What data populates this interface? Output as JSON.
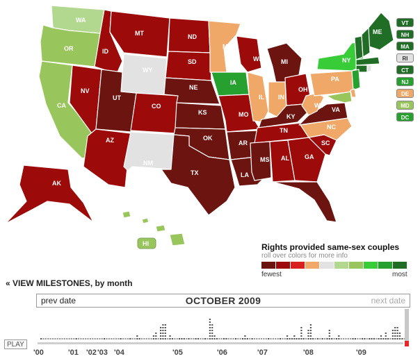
{
  "legend": {
    "title": "Rights provided same-sex couples",
    "subtitle": "roll over colors for more info",
    "fewest": "fewest",
    "most": "most",
    "scale_colors": [
      "#6b1410",
      "#9c0a0a",
      "#d92020",
      "#f0a868",
      "#e2e2e2",
      "#b2d890",
      "#99c65c",
      "#38cc38",
      "#26a02e",
      "#206d26"
    ]
  },
  "side_states": [
    {
      "abbr": "VT",
      "color": "#206d26"
    },
    {
      "abbr": "NH",
      "color": "#206d26"
    },
    {
      "abbr": "MA",
      "color": "#206d26"
    },
    {
      "abbr": "RI",
      "color": "#e2e2e2"
    },
    {
      "abbr": "CT",
      "color": "#206d26"
    },
    {
      "abbr": "NJ",
      "color": "#26a02e"
    },
    {
      "abbr": "DE",
      "color": "#f0a868"
    },
    {
      "abbr": "MD",
      "color": "#99c65c"
    },
    {
      "abbr": "DC",
      "color": "#26a02e"
    }
  ],
  "states": [
    {
      "abbr": "WA",
      "color": "#b2d890"
    },
    {
      "abbr": "OR",
      "color": "#99c65c"
    },
    {
      "abbr": "CA",
      "color": "#99c65c"
    },
    {
      "abbr": "NV",
      "color": "#9c0a0a"
    },
    {
      "abbr": "ID",
      "color": "#9c0a0a"
    },
    {
      "abbr": "MT",
      "color": "#9c0a0a"
    },
    {
      "abbr": "WY",
      "color": "#e2e2e2"
    },
    {
      "abbr": "UT",
      "color": "#6b1410"
    },
    {
      "abbr": "AZ",
      "color": "#9c0a0a"
    },
    {
      "abbr": "CO",
      "color": "#9c0a0a"
    },
    {
      "abbr": "NM",
      "color": "#e2e2e2"
    },
    {
      "abbr": "ND",
      "color": "#9c0a0a"
    },
    {
      "abbr": "SD",
      "color": "#9c0a0a"
    },
    {
      "abbr": "NE",
      "color": "#6b1410"
    },
    {
      "abbr": "KS",
      "color": "#6b1410"
    },
    {
      "abbr": "OK",
      "color": "#6b1410"
    },
    {
      "abbr": "TX",
      "color": "#6b1410"
    },
    {
      "abbr": "MN",
      "color": "#f0a868"
    },
    {
      "abbr": "IA",
      "color": "#26a02e"
    },
    {
      "abbr": "MO",
      "color": "#9c0a0a"
    },
    {
      "abbr": "AR",
      "color": "#6b1410"
    },
    {
      "abbr": "LA",
      "color": "#6b1410"
    },
    {
      "abbr": "WI",
      "color": "#9c0a0a"
    },
    {
      "abbr": "IL",
      "color": "#f0a868"
    },
    {
      "abbr": "MI",
      "color": "#6b1410"
    },
    {
      "abbr": "IN",
      "color": "#f0a868"
    },
    {
      "abbr": "OH",
      "color": "#9c0a0a"
    },
    {
      "abbr": "KY",
      "color": "#6b1410"
    },
    {
      "abbr": "TN",
      "color": "#9c0a0a"
    },
    {
      "abbr": "MS",
      "color": "#6b1410"
    },
    {
      "abbr": "AL",
      "color": "#9c0a0a"
    },
    {
      "abbr": "GA",
      "color": "#9c0a0a"
    },
    {
      "abbr": "FL",
      "color": "#6b1410"
    },
    {
      "abbr": "SC",
      "color": "#9c0a0a"
    },
    {
      "abbr": "NC",
      "color": "#f0a868"
    },
    {
      "abbr": "VA",
      "color": "#6b1410"
    },
    {
      "abbr": "WV",
      "color": "#f0a868"
    },
    {
      "abbr": "PA",
      "color": "#f0a868"
    },
    {
      "abbr": "NY",
      "color": "#38cc38"
    },
    {
      "abbr": "ME",
      "color": "#206d26"
    },
    {
      "abbr": "AK",
      "color": "#9c0a0a"
    },
    {
      "abbr": "HI",
      "color": "#99c65c"
    }
  ],
  "timeline": {
    "milestones_prefix": "« VIEW MILESTONES",
    "milestones_suffix": ", by month",
    "prev_label": "prev date",
    "current_month": "OCTOBER 2009",
    "next_label": "next date",
    "play_label": "PLAY",
    "year_labels": [
      "'00",
      "'01",
      "'02",
      "'03",
      "'04",
      "'05",
      "'06",
      "'07",
      "'08",
      "'09"
    ],
    "monthly_milestones": [
      1,
      0,
      0,
      0,
      0,
      0,
      0,
      0,
      0,
      0,
      0,
      0,
      0,
      0,
      0,
      1,
      0,
      0,
      0,
      0,
      0,
      0,
      0,
      0,
      0,
      0,
      0,
      1,
      0,
      0,
      0,
      0,
      0,
      0,
      1,
      0,
      0,
      0,
      1,
      0,
      0,
      2,
      1,
      0,
      0,
      0,
      0,
      0,
      2,
      3,
      0,
      5,
      6,
      6,
      0,
      2,
      1,
      0,
      0,
      1,
      1,
      1,
      0,
      1,
      0,
      0,
      1,
      1,
      0,
      0,
      1,
      0,
      8,
      6,
      2,
      1,
      0,
      0,
      1,
      1,
      0,
      0,
      0,
      1,
      0,
      0,
      1,
      2,
      1,
      0,
      1,
      0,
      0,
      0,
      0,
      0,
      0,
      1,
      0,
      0,
      0,
      0,
      1,
      0,
      0,
      2,
      1,
      1,
      2,
      1,
      1,
      5,
      1,
      0,
      4,
      6,
      1,
      0,
      1,
      0,
      1,
      0,
      1,
      4,
      1,
      0,
      1,
      2,
      0,
      0,
      0,
      0,
      0,
      1,
      1,
      0,
      0,
      1,
      1,
      0,
      1,
      1,
      1,
      0,
      1,
      2,
      1,
      3,
      1,
      0,
      4,
      5,
      5,
      3,
      1,
      0
    ]
  }
}
